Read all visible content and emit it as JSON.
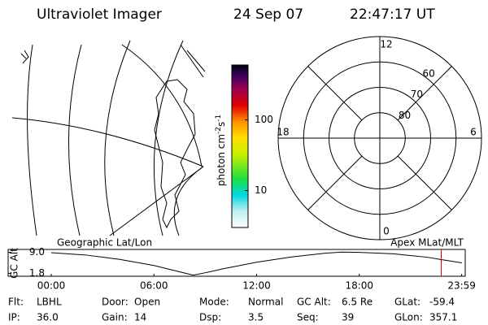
{
  "header": {
    "title": "Ultraviolet Imager",
    "date": "24 Sep 07",
    "time": "22:47:17 UT"
  },
  "colorbar": {
    "label": "photon cm",
    "exp1": "-2",
    "unit2": "s",
    "exp2": "-1",
    "log": true,
    "lim": [
      3,
      600
    ],
    "ticks": [
      10,
      100
    ]
  },
  "polar_plot": {
    "lim": [
      90,
      50
    ],
    "lat_circles": [
      80,
      70,
      60
    ],
    "mlt_labels": [
      12,
      18,
      6,
      0
    ]
  },
  "chart_data": {
    "type": "line",
    "left_label": "Geographic Lat/Lon",
    "right_label": "Apex MLat/MLT",
    "ylabel": "GC Alt",
    "x": [
      0,
      2,
      4,
      6,
      8,
      8.3,
      9,
      10,
      12,
      14,
      16,
      17,
      18,
      20,
      22,
      22.788,
      24
    ],
    "series": [
      {
        "color": "#000000",
        "values": [
          8.9,
          8.1,
          6.6,
          4.5,
          1.6,
          1.2,
          2.0,
          3.3,
          5.6,
          7.4,
          8.7,
          9.1,
          9.0,
          8.5,
          7.3,
          6.5,
          5.4
        ]
      }
    ],
    "xlim": [
      0,
      24
    ],
    "xticks": [
      {
        "value": 0,
        "label": "00:00"
      },
      {
        "value": 6,
        "label": "06:00"
      },
      {
        "value": 12,
        "label": "12:00"
      },
      {
        "value": 18,
        "label": "18:00"
      },
      {
        "value": 23.983,
        "label": "23:59"
      }
    ],
    "ylim": [
      0.8,
      10.0
    ],
    "yticks": [
      {
        "value": 1.8,
        "label": "1.8"
      },
      {
        "value": 9.0,
        "label": "9.0"
      }
    ],
    "marker": {
      "x": 22.788,
      "color": "#e00000"
    }
  },
  "footer": {
    "rows": [
      [
        [
          "Flt:",
          "LBHL"
        ],
        [
          "Door:",
          "Open"
        ],
        [
          "Mode:",
          "Normal"
        ],
        [
          "GC Alt:",
          "6.5 Re"
        ],
        [
          "GLat:",
          "-59.4"
        ]
      ],
      [
        [
          "IP:",
          "36.0"
        ],
        [
          "Gain:",
          "14"
        ],
        [
          "Dsp:",
          "3.5"
        ],
        [
          "Seq:",
          "39"
        ],
        [
          "GLon:",
          "357.1"
        ]
      ]
    ]
  }
}
